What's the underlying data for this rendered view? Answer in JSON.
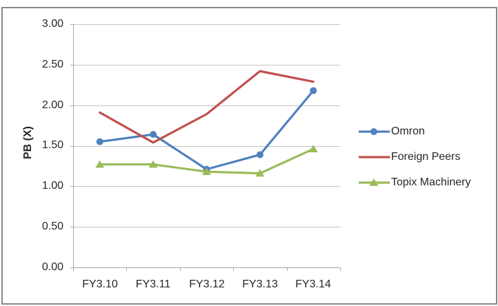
{
  "chart_data": {
    "type": "line",
    "title": "",
    "xlabel": "",
    "ylabel": "PB (X)",
    "categories": [
      "FY3.10",
      "FY3.11",
      "FY3.12",
      "FY3.13",
      "FY3.14"
    ],
    "y_ticks": [
      "3.00",
      "2.50",
      "2.00",
      "1.50",
      "1.00",
      "0.50",
      "0.00"
    ],
    "ylim": [
      0,
      3
    ],
    "y_tick_step": 0.5,
    "grid": true,
    "legend_position": "right",
    "series": [
      {
        "name": "Omron",
        "color": "#4F81BD",
        "marker": "circle",
        "values": [
          1.55,
          1.64,
          1.21,
          1.39,
          2.18
        ]
      },
      {
        "name": "Foreign Peers",
        "color": "#C0504D",
        "marker": "none",
        "values": [
          1.91,
          1.54,
          1.89,
          2.42,
          2.29
        ]
      },
      {
        "name": "Topix Machinery",
        "color": "#9BBB59",
        "marker": "triangle",
        "values": [
          1.27,
          1.27,
          1.18,
          1.16,
          1.46
        ]
      }
    ],
    "colors": {
      "gridline": "#C3C3C3",
      "axis": "#A6A6A6",
      "text": "#262626",
      "frame_border": "#878787",
      "background": "#FFFFFF"
    }
  }
}
